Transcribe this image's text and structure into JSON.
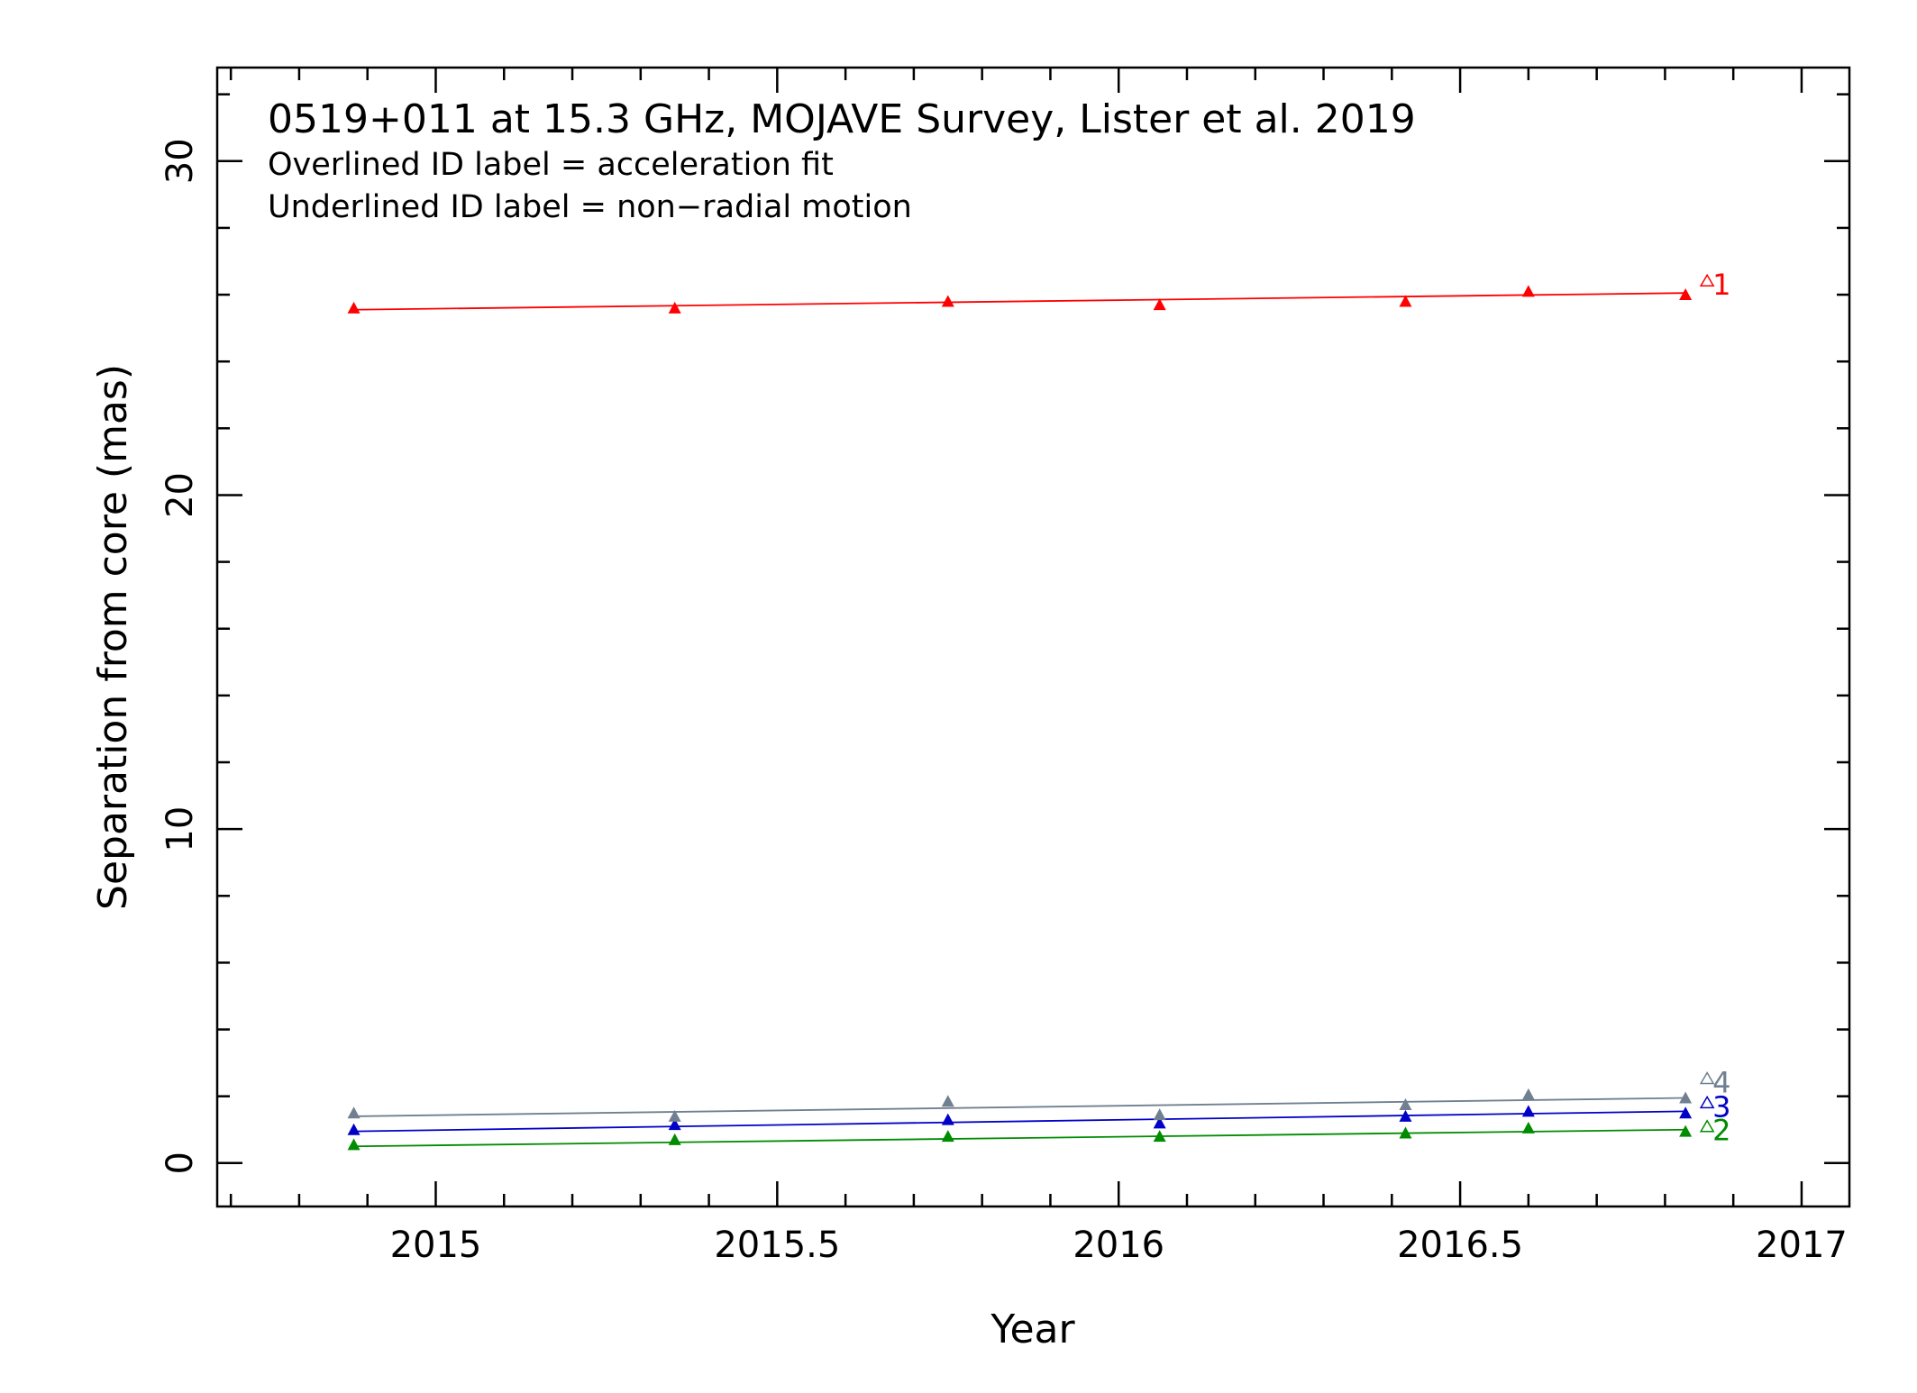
{
  "chart_data": {
    "type": "scatter",
    "title": "0519+011 at 15.3 GHz, MOJAVE Survey, Lister et al. 2019",
    "subtitle_lines": [
      "Overlined ID label = acceleration fit",
      "Underlined ID label = non−radial motion"
    ],
    "xlabel": "Year",
    "ylabel": "Separation from core (mas)",
    "xlim": [
      2014.68,
      2017.07
    ],
    "ylim": [
      -1.3,
      32.8
    ],
    "x_ticks": [
      2015,
      2015.5,
      2016,
      2016.5,
      2017
    ],
    "x_tick_labels": [
      "2015",
      "2015.5",
      "2016",
      "2016.5",
      "2017"
    ],
    "y_ticks": [
      0,
      10,
      20,
      30
    ],
    "y_tick_labels": [
      "0",
      "10",
      "20",
      "30"
    ],
    "grid": false,
    "marker": "filled-triangle",
    "series": [
      {
        "name": "1",
        "color": "#ff0000",
        "x": [
          2014.88,
          2015.35,
          2015.75,
          2016.06,
          2016.42,
          2016.6,
          2016.83
        ],
        "y": [
          25.6,
          25.6,
          25.8,
          25.7,
          25.8,
          26.1,
          26.0
        ],
        "fit": {
          "x": [
            2014.88,
            2016.83
          ],
          "y": [
            25.55,
            26.05
          ]
        }
      },
      {
        "name": "2",
        "color": "#008c00",
        "x": [
          2014.88,
          2015.35,
          2015.75,
          2016.06,
          2016.42,
          2016.6,
          2016.83
        ],
        "y": [
          0.55,
          0.7,
          0.8,
          0.8,
          0.9,
          1.05,
          0.95
        ],
        "fit": {
          "x": [
            2014.88,
            2016.83
          ],
          "y": [
            0.5,
            1.0
          ]
        }
      },
      {
        "name": "3",
        "color": "#0000c8",
        "x": [
          2014.88,
          2015.35,
          2015.75,
          2016.06,
          2016.42,
          2016.6,
          2016.83
        ],
        "y": [
          1.0,
          1.15,
          1.3,
          1.2,
          1.4,
          1.55,
          1.5
        ],
        "fit": {
          "x": [
            2014.88,
            2016.83
          ],
          "y": [
            0.95,
            1.55
          ]
        }
      },
      {
        "name": "4",
        "color": "#708090",
        "x": [
          2014.88,
          2015.35,
          2015.75,
          2016.06,
          2016.42,
          2016.6,
          2016.83
        ],
        "y": [
          1.5,
          1.4,
          1.85,
          1.45,
          1.75,
          2.05,
          1.95
        ],
        "fit": {
          "x": [
            2014.88,
            2016.83
          ],
          "y": [
            1.4,
            1.95
          ]
        }
      }
    ]
  }
}
